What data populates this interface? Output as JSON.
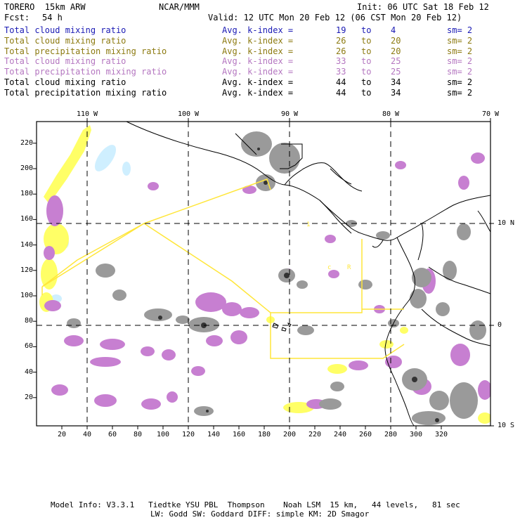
{
  "header": {
    "model": "TORERO  15km ARW",
    "center": "NCAR/MMM",
    "init": "Init: 06 UTC Sat 18 Feb 12",
    "fcst_label": "Fcst:",
    "fcst_value": "54 h",
    "valid": "Valid: 12 UTC Mon 20 Feb 12 (06 CST Mon 20 Feb 12)"
  },
  "legend": [
    {
      "field": "Total cloud mixing ratio",
      "avg": "Avg. k-index =",
      "k_from": "19",
      "to": "to",
      "k_to": "4",
      "sm": "sm= 2",
      "color": "#1a1ab4"
    },
    {
      "field": "Total cloud mixing ratio",
      "avg": "Avg. k-index =",
      "k_from": "26",
      "to": "to",
      "k_to": "20",
      "sm": "sm= 2",
      "color": "#8c7a10"
    },
    {
      "field": "Total precipitation mixing ratio",
      "avg": "Avg. k-index =",
      "k_from": "26",
      "to": "to",
      "k_to": "20",
      "sm": "sm= 2",
      "color": "#8c7a10"
    },
    {
      "field": "Total cloud mixing ratio",
      "avg": "Avg. k-index =",
      "k_from": "33",
      "to": "to",
      "k_to": "25",
      "sm": "sm= 2",
      "color": "#b476c0"
    },
    {
      "field": "Total precipitation mixing ratio",
      "avg": "Avg. k-index =",
      "k_from": "33",
      "to": "to",
      "k_to": "25",
      "sm": "sm= 2",
      "color": "#b476c0"
    },
    {
      "field": "Total cloud mixing ratio",
      "avg": "Avg. k-index =",
      "k_from": "44",
      "to": "to",
      "k_to": "34",
      "sm": "sm= 2",
      "color": "#000000"
    },
    {
      "field": "Total precipitation mixing ratio",
      "avg": "Avg. k-index =",
      "k_from": "44",
      "to": "to",
      "k_to": "34",
      "sm": "sm= 2",
      "color": "#000000"
    }
  ],
  "axes": {
    "top_lon_labels": [
      "110 W",
      "100 W",
      "90 W",
      "80 W",
      "70 W"
    ],
    "right_lat_labels": [
      "10 N",
      "0",
      "10 S"
    ],
    "bottom_ticks": [
      "20",
      "40",
      "60",
      "80",
      "100",
      "120",
      "140",
      "160",
      "180",
      "200",
      "220",
      "240",
      "260",
      "280",
      "300",
      "320"
    ],
    "left_ticks": [
      "20",
      "40",
      "60",
      "80",
      "100",
      "120",
      "140",
      "160",
      "180",
      "200",
      "220"
    ]
  },
  "map_labels": {
    "region_marker_1": "1",
    "region_marker_2": "c",
    "region_marker_3": "R"
  },
  "colors": {
    "cloud_low": "#ffff66",
    "cloud_mid": "#c77fd1",
    "cloud_high": "#9a9a9a",
    "cloud_light": "#cfefff",
    "region_box": "#ffe63a",
    "grid": "#000000"
  },
  "footer": {
    "line1": "Model Info: V3.3.1   Tiedtke YSU PBL  Thompson    Noah LSM  15 km,   44 levels,   81 sec",
    "line2": "LW: Godd SW: Goddard DIFF: simple KM: 2D Smagor"
  }
}
